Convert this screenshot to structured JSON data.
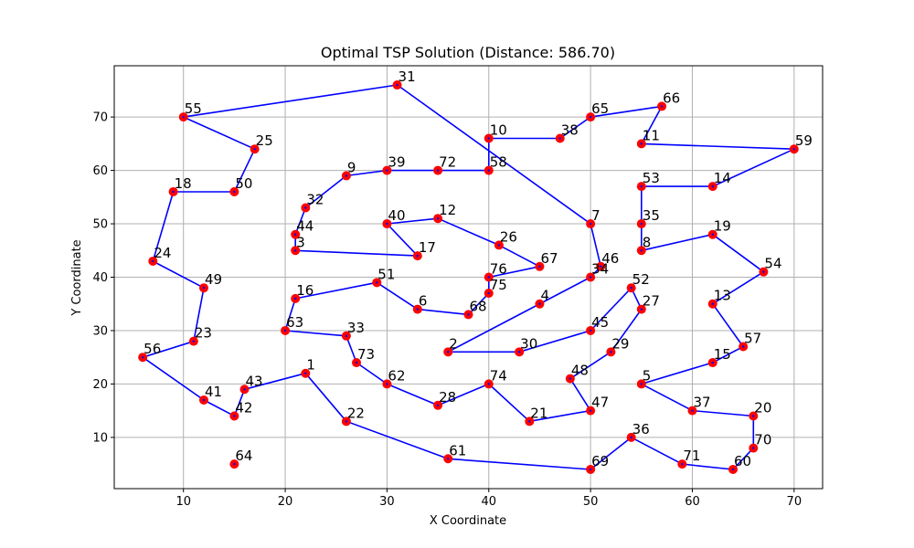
{
  "chart_data": {
    "type": "scatter",
    "title": "Optimal TSP Solution (Distance: 586.70)",
    "xlabel": "X Coordinate",
    "ylabel": "Y Coordinate",
    "xlim": [
      3.2,
      72.8
    ],
    "ylim": [
      0.4,
      79.6
    ],
    "xticks": [
      10,
      20,
      30,
      40,
      50,
      60,
      70
    ],
    "yticks": [
      10,
      20,
      30,
      40,
      50,
      60,
      70
    ],
    "grid": true,
    "colors": {
      "route": "#0000ff",
      "point": "#ff0000",
      "grid": "#b0b0b0"
    },
    "points": [
      {
        "id": "1",
        "x": 22,
        "y": 22
      },
      {
        "id": "2",
        "x": 36,
        "y": 26
      },
      {
        "id": "3",
        "x": 21,
        "y": 45
      },
      {
        "id": "4",
        "x": 45,
        "y": 35
      },
      {
        "id": "5",
        "x": 55,
        "y": 20
      },
      {
        "id": "6",
        "x": 33,
        "y": 34
      },
      {
        "id": "7",
        "x": 50,
        "y": 50
      },
      {
        "id": "8",
        "x": 55,
        "y": 45
      },
      {
        "id": "9",
        "x": 26,
        "y": 59
      },
      {
        "id": "10",
        "x": 40,
        "y": 66
      },
      {
        "id": "11",
        "x": 55,
        "y": 65
      },
      {
        "id": "12",
        "x": 35,
        "y": 51
      },
      {
        "id": "13",
        "x": 62,
        "y": 35
      },
      {
        "id": "14",
        "x": 62,
        "y": 57
      },
      {
        "id": "15",
        "x": 62,
        "y": 24
      },
      {
        "id": "16",
        "x": 21,
        "y": 36
      },
      {
        "id": "17",
        "x": 33,
        "y": 44
      },
      {
        "id": "18",
        "x": 9,
        "y": 56
      },
      {
        "id": "19",
        "x": 62,
        "y": 48
      },
      {
        "id": "20",
        "x": 66,
        "y": 14
      },
      {
        "id": "21",
        "x": 44,
        "y": 13
      },
      {
        "id": "22",
        "x": 26,
        "y": 13
      },
      {
        "id": "23",
        "x": 11,
        "y": 28
      },
      {
        "id": "24",
        "x": 7,
        "y": 43
      },
      {
        "id": "25",
        "x": 17,
        "y": 64
      },
      {
        "id": "26",
        "x": 41,
        "y": 46
      },
      {
        "id": "27",
        "x": 55,
        "y": 34
      },
      {
        "id": "28",
        "x": 35,
        "y": 16
      },
      {
        "id": "29",
        "x": 52,
        "y": 26
      },
      {
        "id": "30",
        "x": 43,
        "y": 26
      },
      {
        "id": "31",
        "x": 31,
        "y": 76
      },
      {
        "id": "32",
        "x": 22,
        "y": 53
      },
      {
        "id": "33",
        "x": 26,
        "y": 29
      },
      {
        "id": "34",
        "x": 50,
        "y": 40
      },
      {
        "id": "35",
        "x": 55,
        "y": 50
      },
      {
        "id": "36",
        "x": 54,
        "y": 10
      },
      {
        "id": "37",
        "x": 60,
        "y": 15
      },
      {
        "id": "38",
        "x": 47,
        "y": 66
      },
      {
        "id": "39",
        "x": 30,
        "y": 60
      },
      {
        "id": "40",
        "x": 30,
        "y": 50
      },
      {
        "id": "41",
        "x": 12,
        "y": 17
      },
      {
        "id": "42",
        "x": 15,
        "y": 14
      },
      {
        "id": "43",
        "x": 16,
        "y": 19
      },
      {
        "id": "44",
        "x": 21,
        "y": 48
      },
      {
        "id": "45",
        "x": 50,
        "y": 30
      },
      {
        "id": "46",
        "x": 51,
        "y": 42
      },
      {
        "id": "47",
        "x": 50,
        "y": 15
      },
      {
        "id": "48",
        "x": 48,
        "y": 21
      },
      {
        "id": "49",
        "x": 12,
        "y": 38
      },
      {
        "id": "50",
        "x": 15,
        "y": 56
      },
      {
        "id": "51",
        "x": 29,
        "y": 39
      },
      {
        "id": "52",
        "x": 54,
        "y": 38
      },
      {
        "id": "53",
        "x": 55,
        "y": 57
      },
      {
        "id": "54",
        "x": 67,
        "y": 41
      },
      {
        "id": "55",
        "x": 10,
        "y": 70
      },
      {
        "id": "56",
        "x": 6,
        "y": 25
      },
      {
        "id": "57",
        "x": 65,
        "y": 27
      },
      {
        "id": "58",
        "x": 40,
        "y": 60
      },
      {
        "id": "59",
        "x": 70,
        "y": 64
      },
      {
        "id": "60",
        "x": 64,
        "y": 4
      },
      {
        "id": "61",
        "x": 36,
        "y": 6
      },
      {
        "id": "62",
        "x": 30,
        "y": 20
      },
      {
        "id": "63",
        "x": 20,
        "y": 30
      },
      {
        "id": "64",
        "x": 15,
        "y": 5
      },
      {
        "id": "65",
        "x": 50,
        "y": 70
      },
      {
        "id": "66",
        "x": 57,
        "y": 72
      },
      {
        "id": "67",
        "x": 45,
        "y": 42
      },
      {
        "id": "68",
        "x": 38,
        "y": 33
      },
      {
        "id": "69",
        "x": 50,
        "y": 4
      },
      {
        "id": "70",
        "x": 66,
        "y": 8
      },
      {
        "id": "71",
        "x": 59,
        "y": 5
      },
      {
        "id": "72",
        "x": 35,
        "y": 60
      },
      {
        "id": "73",
        "x": 27,
        "y": 24
      },
      {
        "id": "74",
        "x": 40,
        "y": 20
      },
      {
        "id": "75",
        "x": 40,
        "y": 37
      },
      {
        "id": "76",
        "x": 40,
        "y": 40
      }
    ],
    "route": [
      "55",
      "31",
      "7",
      "46",
      "34",
      "2",
      "30",
      "45",
      "52",
      "27",
      "29",
      "48",
      "47",
      "21",
      "74",
      "28",
      "62",
      "73",
      "33",
      "63",
      "16",
      "51",
      "6",
      "68",
      "75",
      "76",
      "67",
      "26",
      "12",
      "40",
      "17",
      "3",
      "44",
      "32",
      "9",
      "39",
      "72",
      "58",
      "10",
      "38",
      "65",
      "66",
      "11",
      "59",
      "14",
      "53",
      "35",
      "8",
      "19",
      "54",
      "13",
      "57",
      "15",
      "5",
      "37",
      "20",
      "70",
      "60",
      "71",
      "36",
      "69",
      "61",
      "22",
      "1",
      "43",
      "42",
      "41",
      "56",
      "23",
      "49",
      "24",
      "18",
      "50",
      "25",
      "55"
    ]
  }
}
